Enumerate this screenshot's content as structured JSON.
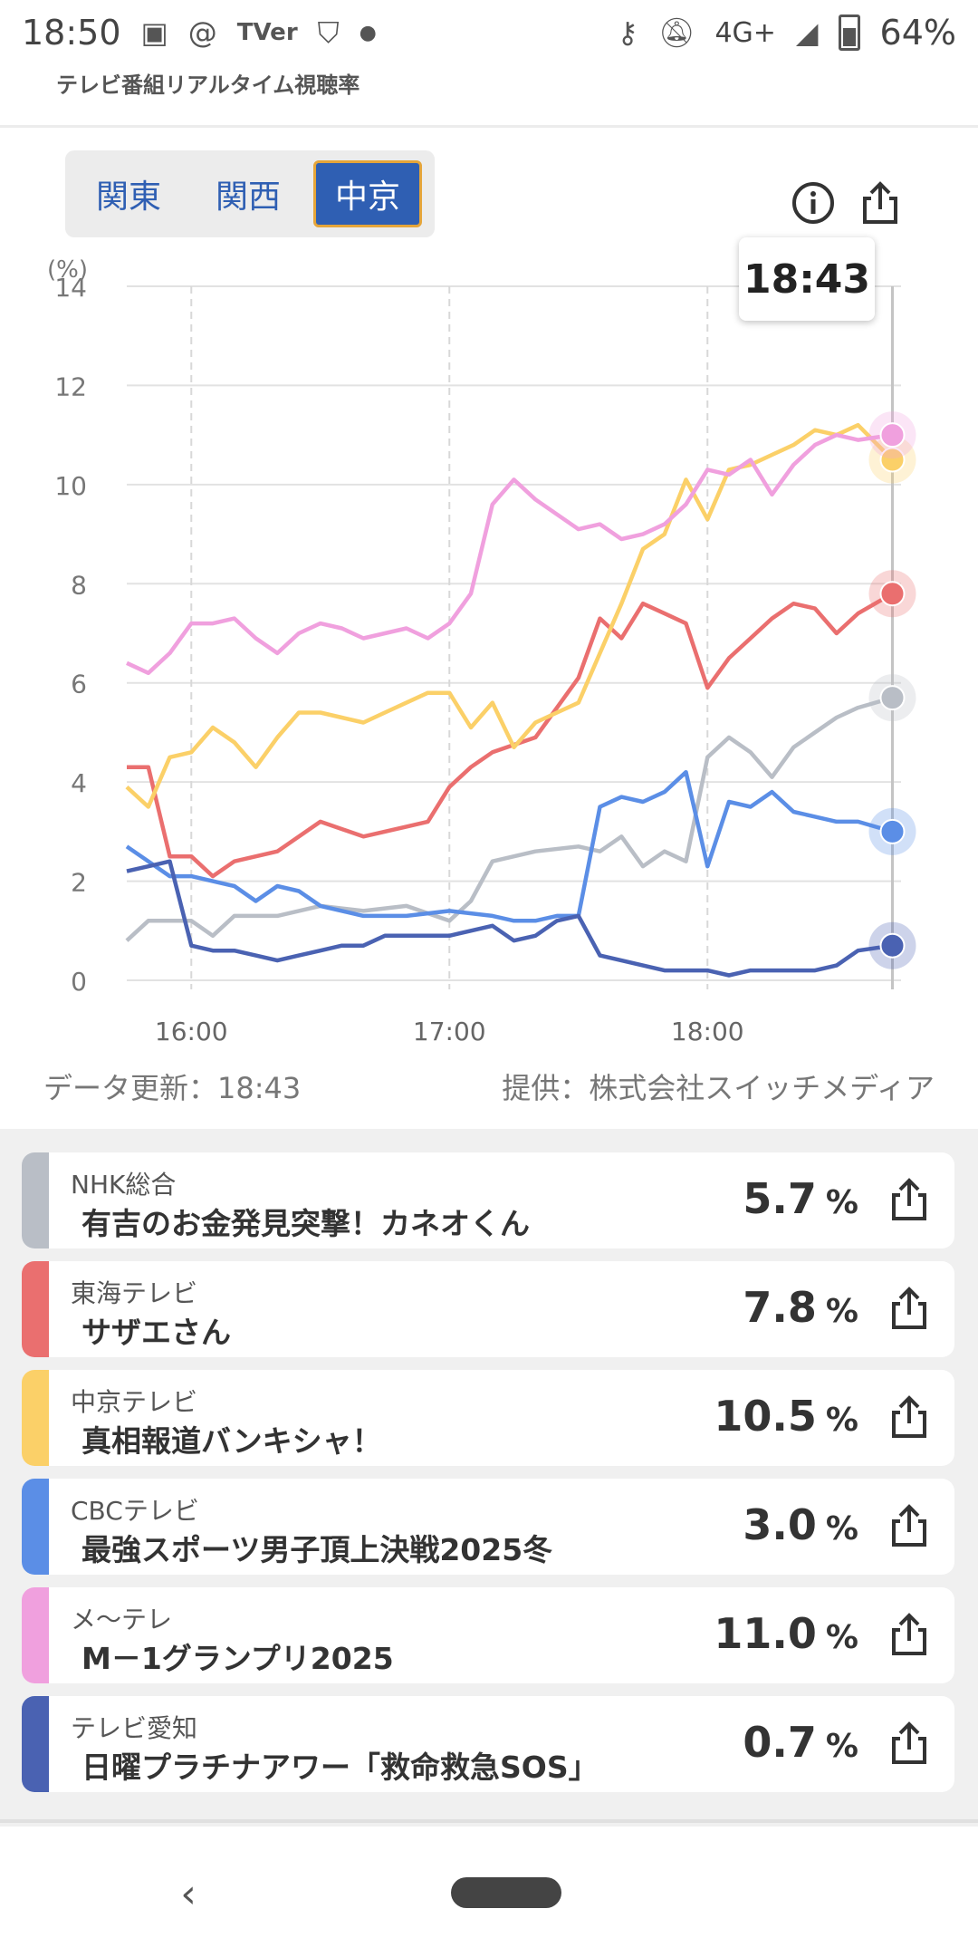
{
  "status_bar": {
    "time": "18:50",
    "left_icons": [
      "image-icon",
      "threads-icon",
      "tver-icon",
      "shield-icon",
      "dot-icon"
    ],
    "tver_label": "TVer",
    "network": "4G+",
    "battery": "64%"
  },
  "app": {
    "title": "テレビ番組リアルタイム視聴率"
  },
  "regions": [
    {
      "label": "関東",
      "active": false
    },
    {
      "label": "関西",
      "active": false
    },
    {
      "label": "中京",
      "active": true
    }
  ],
  "accent_color": "#2f5fb3",
  "tooltip_time": "18:43",
  "chart_data": {
    "type": "line",
    "y_unit": "(%)",
    "ylim": [
      0,
      14
    ],
    "yticks": [
      "0",
      "2",
      "4",
      "6",
      "8",
      "10",
      "12",
      "14"
    ],
    "xlim": [
      "15:45",
      "18:45"
    ],
    "xticks": [
      "16:00",
      "17:00",
      "18:00"
    ],
    "cursor_time": "18:43",
    "grid": true,
    "series": [
      {
        "name": "NHK総合",
        "color": "#b9bec6",
        "points": [
          [
            "15:45",
            0.8
          ],
          [
            "15:50",
            1.2
          ],
          [
            "16:00",
            1.2
          ],
          [
            "16:05",
            0.9
          ],
          [
            "16:10",
            1.3
          ],
          [
            "16:20",
            1.3
          ],
          [
            "16:30",
            1.5
          ],
          [
            "16:40",
            1.4
          ],
          [
            "16:50",
            1.5
          ],
          [
            "17:00",
            1.2
          ],
          [
            "17:05",
            1.6
          ],
          [
            "17:10",
            2.4
          ],
          [
            "17:20",
            2.6
          ],
          [
            "17:30",
            2.7
          ],
          [
            "17:35",
            2.6
          ],
          [
            "17:40",
            2.9
          ],
          [
            "17:45",
            2.3
          ],
          [
            "17:50",
            2.6
          ],
          [
            "17:55",
            2.4
          ],
          [
            "18:00",
            4.5
          ],
          [
            "18:05",
            4.9
          ],
          [
            "18:10",
            4.6
          ],
          [
            "18:15",
            4.1
          ],
          [
            "18:20",
            4.7
          ],
          [
            "18:25",
            5.0
          ],
          [
            "18:30",
            5.3
          ],
          [
            "18:35",
            5.5
          ],
          [
            "18:43",
            5.7
          ]
        ]
      },
      {
        "name": "東海テレビ",
        "color": "#ea6f6f",
        "points": [
          [
            "15:45",
            4.3
          ],
          [
            "15:50",
            4.3
          ],
          [
            "15:55",
            2.5
          ],
          [
            "16:00",
            2.5
          ],
          [
            "16:05",
            2.1
          ],
          [
            "16:10",
            2.4
          ],
          [
            "16:20",
            2.6
          ],
          [
            "16:30",
            3.2
          ],
          [
            "16:40",
            2.9
          ],
          [
            "16:50",
            3.1
          ],
          [
            "16:55",
            3.2
          ],
          [
            "17:00",
            3.9
          ],
          [
            "17:05",
            4.3
          ],
          [
            "17:10",
            4.6
          ],
          [
            "17:20",
            4.9
          ],
          [
            "17:30",
            6.1
          ],
          [
            "17:35",
            7.3
          ],
          [
            "17:40",
            6.9
          ],
          [
            "17:45",
            7.6
          ],
          [
            "17:50",
            7.4
          ],
          [
            "17:55",
            7.2
          ],
          [
            "18:00",
            5.9
          ],
          [
            "18:05",
            6.5
          ],
          [
            "18:10",
            6.9
          ],
          [
            "18:15",
            7.3
          ],
          [
            "18:20",
            7.6
          ],
          [
            "18:25",
            7.5
          ],
          [
            "18:30",
            7.0
          ],
          [
            "18:35",
            7.4
          ],
          [
            "18:43",
            7.8
          ]
        ]
      },
      {
        "name": "中京テレビ",
        "color": "#fbd068",
        "points": [
          [
            "15:45",
            3.9
          ],
          [
            "15:50",
            3.5
          ],
          [
            "15:55",
            4.5
          ],
          [
            "16:00",
            4.6
          ],
          [
            "16:05",
            5.1
          ],
          [
            "16:10",
            4.8
          ],
          [
            "16:15",
            4.3
          ],
          [
            "16:20",
            4.9
          ],
          [
            "16:25",
            5.4
          ],
          [
            "16:30",
            5.4
          ],
          [
            "16:35",
            5.3
          ],
          [
            "16:40",
            5.2
          ],
          [
            "16:45",
            5.4
          ],
          [
            "16:50",
            5.6
          ],
          [
            "16:55",
            5.8
          ],
          [
            "17:00",
            5.8
          ],
          [
            "17:05",
            5.1
          ],
          [
            "17:10",
            5.6
          ],
          [
            "17:15",
            4.7
          ],
          [
            "17:20",
            5.2
          ],
          [
            "17:25",
            5.4
          ],
          [
            "17:30",
            5.6
          ],
          [
            "17:35",
            6.6
          ],
          [
            "17:40",
            7.6
          ],
          [
            "17:45",
            8.7
          ],
          [
            "17:50",
            9.0
          ],
          [
            "17:55",
            10.1
          ],
          [
            "18:00",
            9.3
          ],
          [
            "18:05",
            10.3
          ],
          [
            "18:10",
            10.4
          ],
          [
            "18:15",
            10.6
          ],
          [
            "18:20",
            10.8
          ],
          [
            "18:25",
            11.1
          ],
          [
            "18:30",
            11.0
          ],
          [
            "18:35",
            11.2
          ],
          [
            "18:43",
            10.5
          ]
        ]
      },
      {
        "name": "CBCテレビ",
        "color": "#5b8ee6",
        "points": [
          [
            "15:45",
            2.7
          ],
          [
            "15:50",
            2.4
          ],
          [
            "15:55",
            2.1
          ],
          [
            "16:00",
            2.1
          ],
          [
            "16:05",
            2.0
          ],
          [
            "16:10",
            1.9
          ],
          [
            "16:15",
            1.6
          ],
          [
            "16:20",
            1.9
          ],
          [
            "16:25",
            1.8
          ],
          [
            "16:30",
            1.5
          ],
          [
            "16:40",
            1.3
          ],
          [
            "16:50",
            1.3
          ],
          [
            "17:00",
            1.4
          ],
          [
            "17:10",
            1.3
          ],
          [
            "17:15",
            1.2
          ],
          [
            "17:20",
            1.2
          ],
          [
            "17:25",
            1.3
          ],
          [
            "17:30",
            1.3
          ],
          [
            "17:35",
            3.5
          ],
          [
            "17:40",
            3.7
          ],
          [
            "17:45",
            3.6
          ],
          [
            "17:50",
            3.8
          ],
          [
            "17:55",
            4.2
          ],
          [
            "18:00",
            2.3
          ],
          [
            "18:05",
            3.6
          ],
          [
            "18:10",
            3.5
          ],
          [
            "18:15",
            3.8
          ],
          [
            "18:20",
            3.4
          ],
          [
            "18:25",
            3.3
          ],
          [
            "18:30",
            3.2
          ],
          [
            "18:35",
            3.2
          ],
          [
            "18:43",
            3.0
          ]
        ]
      },
      {
        "name": "メ～テレ",
        "color": "#f0a0de",
        "points": [
          [
            "15:45",
            6.4
          ],
          [
            "15:50",
            6.2
          ],
          [
            "15:55",
            6.6
          ],
          [
            "16:00",
            7.2
          ],
          [
            "16:05",
            7.2
          ],
          [
            "16:10",
            7.3
          ],
          [
            "16:15",
            6.9
          ],
          [
            "16:20",
            6.6
          ],
          [
            "16:25",
            7.0
          ],
          [
            "16:30",
            7.2
          ],
          [
            "16:35",
            7.1
          ],
          [
            "16:40",
            6.9
          ],
          [
            "16:45",
            7.0
          ],
          [
            "16:50",
            7.1
          ],
          [
            "16:55",
            6.9
          ],
          [
            "17:00",
            7.2
          ],
          [
            "17:05",
            7.8
          ],
          [
            "17:10",
            9.6
          ],
          [
            "17:15",
            10.1
          ],
          [
            "17:20",
            9.7
          ],
          [
            "17:25",
            9.4
          ],
          [
            "17:30",
            9.1
          ],
          [
            "17:35",
            9.2
          ],
          [
            "17:40",
            8.9
          ],
          [
            "17:45",
            9.0
          ],
          [
            "17:50",
            9.2
          ],
          [
            "17:55",
            9.6
          ],
          [
            "18:00",
            10.3
          ],
          [
            "18:05",
            10.2
          ],
          [
            "18:10",
            10.5
          ],
          [
            "18:15",
            9.8
          ],
          [
            "18:20",
            10.4
          ],
          [
            "18:25",
            10.8
          ],
          [
            "18:30",
            11.0
          ],
          [
            "18:35",
            10.9
          ],
          [
            "18:43",
            11.0
          ]
        ]
      },
      {
        "name": "テレビ愛知",
        "color": "#4a62b2",
        "points": [
          [
            "15:45",
            2.2
          ],
          [
            "15:50",
            2.3
          ],
          [
            "15:55",
            2.4
          ],
          [
            "16:00",
            0.7
          ],
          [
            "16:05",
            0.6
          ],
          [
            "16:10",
            0.6
          ],
          [
            "16:15",
            0.5
          ],
          [
            "16:20",
            0.4
          ],
          [
            "16:25",
            0.5
          ],
          [
            "16:30",
            0.6
          ],
          [
            "16:35",
            0.7
          ],
          [
            "16:40",
            0.7
          ],
          [
            "16:45",
            0.9
          ],
          [
            "16:50",
            0.9
          ],
          [
            "16:55",
            0.9
          ],
          [
            "17:00",
            0.9
          ],
          [
            "17:05",
            1.0
          ],
          [
            "17:10",
            1.1
          ],
          [
            "17:15",
            0.8
          ],
          [
            "17:20",
            0.9
          ],
          [
            "17:25",
            1.2
          ],
          [
            "17:30",
            1.3
          ],
          [
            "17:35",
            0.5
          ],
          [
            "17:40",
            0.4
          ],
          [
            "17:45",
            0.3
          ],
          [
            "17:50",
            0.2
          ],
          [
            "17:55",
            0.2
          ],
          [
            "18:00",
            0.2
          ],
          [
            "18:05",
            0.1
          ],
          [
            "18:10",
            0.2
          ],
          [
            "18:15",
            0.2
          ],
          [
            "18:20",
            0.2
          ],
          [
            "18:25",
            0.2
          ],
          [
            "18:30",
            0.3
          ],
          [
            "18:35",
            0.6
          ],
          [
            "18:43",
            0.7
          ]
        ]
      }
    ]
  },
  "chart_footer": {
    "updated": "データ更新：18:43",
    "provider": "提供：株式会社スイッチメディア"
  },
  "channels": [
    {
      "name": "NHK総合",
      "program": "有吉のお金発見突撃！カネオくん",
      "rating": "5.7",
      "unit": "%",
      "color": "#b9bec6"
    },
    {
      "name": "東海テレビ",
      "program": "サザエさん",
      "rating": "7.8",
      "unit": "%",
      "color": "#ea6f6f"
    },
    {
      "name": "中京テレビ",
      "program": "真相報道バンキシャ！",
      "rating": "10.5",
      "unit": "%",
      "color": "#fbd068"
    },
    {
      "name": "CBCテレビ",
      "program": "最強スポーツ男子頂上決戦2025冬",
      "rating": "3.0",
      "unit": "%",
      "color": "#5b8ee6"
    },
    {
      "name": "メ～テレ",
      "program": "M－1グランプリ2025",
      "rating": "11.0",
      "unit": "%",
      "color": "#f0a0de"
    },
    {
      "name": "テレビ愛知",
      "program": "日曜プラチナアワー「救命救急SOS」",
      "rating": "0.7",
      "unit": "%",
      "color": "#4a62b2"
    }
  ]
}
